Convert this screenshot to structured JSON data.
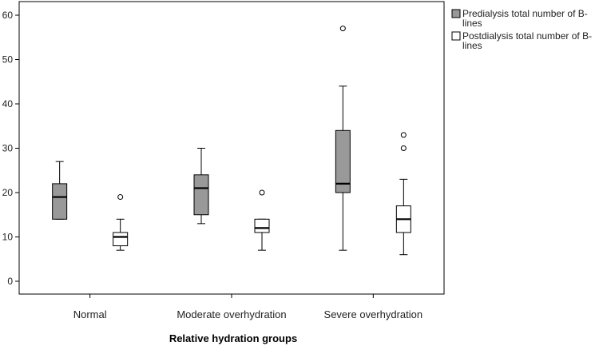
{
  "chart_data": {
    "type": "boxplot",
    "xlabel": "Relative hydration groups",
    "ylabel": "",
    "ylim": [
      -3,
      62
    ],
    "yticks": [
      0,
      10,
      20,
      30,
      40,
      50,
      60
    ],
    "categories": [
      "Normal",
      "Moderate overhydration",
      "Severe overhydration"
    ],
    "legend_position": "top-right, outside plot",
    "series": [
      {
        "name": "Predialysis total number of B-lines",
        "color": "#999999",
        "boxes": [
          {
            "min": 14,
            "q1": 14,
            "median": 19,
            "q3": 22,
            "max": 27,
            "outliers": []
          },
          {
            "min": 13,
            "q1": 15,
            "median": 21,
            "q3": 24,
            "max": 30,
            "outliers": []
          },
          {
            "min": 7,
            "q1": 20,
            "median": 22,
            "q3": 34,
            "max": 44,
            "outliers": [
              57
            ]
          }
        ]
      },
      {
        "name": "Postdialysis total number of B-lines",
        "color": "#ffffff",
        "boxes": [
          {
            "min": 7,
            "q1": 8,
            "median": 10,
            "q3": 11,
            "max": 14,
            "outliers": [
              19
            ]
          },
          {
            "min": 7,
            "q1": 11,
            "median": 12,
            "q3": 14,
            "max": 14,
            "outliers": [
              20
            ]
          },
          {
            "min": 6,
            "q1": 11,
            "median": 14,
            "q3": 17,
            "max": 23,
            "outliers": [
              30,
              33
            ]
          }
        ]
      }
    ]
  }
}
